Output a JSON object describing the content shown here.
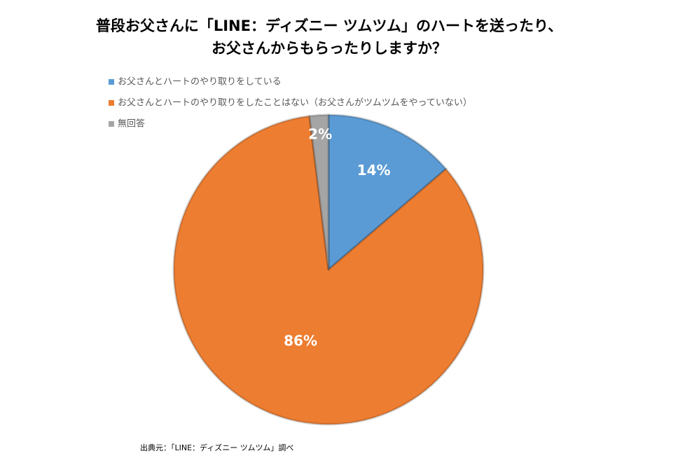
{
  "chart_data": {
    "type": "pie",
    "title": [
      "普段お父さんに「LINE：ディズニー ツムツム」のハートを送ったり、",
      "お父さんからもらったりしますか？"
    ],
    "categories": [
      "お父さんとハートのやり取りをしている",
      "お父さんとハートのやり取りをしたことはない（お父さんがツムツムをやっていない）",
      "無回答"
    ],
    "values": [
      14,
      86,
      2
    ],
    "value_labels": [
      "14%",
      "86%",
      "2%"
    ],
    "colors": [
      "#5b9bd5",
      "#ed7d31",
      "#a5a5a5"
    ],
    "legend": "top-left",
    "source": "出典元：「LINE：ディズニー ツムツム」調べ"
  }
}
